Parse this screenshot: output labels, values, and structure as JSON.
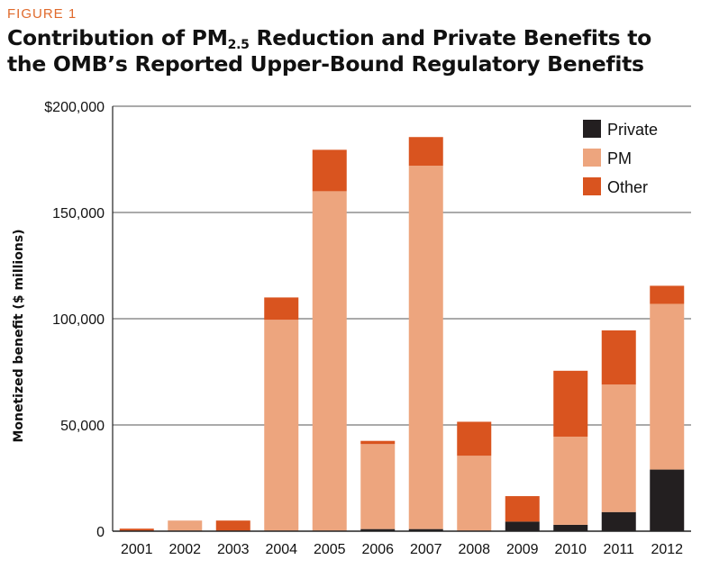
{
  "figure_label": "FIGURE 1",
  "title": {
    "part1": "Contribution of PM",
    "sub": "2.5",
    "part2": " Reduction and Private Benefits to the OMB’s Reported Upper-Bound Regulatory Benefits"
  },
  "colors": {
    "private": "#231f20",
    "pm": "#eda57e",
    "other": "#d9541f",
    "grid": "#555555",
    "label": "#e06a2c"
  },
  "chart_data": {
    "type": "bar",
    "stacked": true,
    "categories": [
      "2001",
      "2002",
      "2003",
      "2004",
      "2005",
      "2006",
      "2007",
      "2008",
      "2009",
      "2010",
      "2011",
      "2012"
    ],
    "series": [
      {
        "name": "Private",
        "key": "private",
        "values": [
          0,
          0,
          0,
          0,
          0,
          1000,
          1000,
          0,
          4500,
          3000,
          9000,
          29000
        ]
      },
      {
        "name": "PM",
        "key": "pm",
        "values": [
          0,
          5000,
          0,
          99500,
          160000,
          40000,
          171000,
          35500,
          0,
          41500,
          60000,
          78000
        ]
      },
      {
        "name": "Other",
        "key": "other",
        "values": [
          1200,
          0,
          5000,
          10500,
          19500,
          1500,
          13500,
          16000,
          12000,
          31000,
          25500,
          8500
        ]
      }
    ],
    "ylabel": "Monetized benefit ($ millions)",
    "xlabel": "",
    "ylim": [
      0,
      200000
    ],
    "yticks": [
      0,
      50000,
      100000,
      150000,
      200000
    ],
    "ytick_labels": [
      "0",
      "50,000",
      "100,000",
      "150,000",
      "$200,000"
    ],
    "legend": {
      "position": "top-right",
      "order": [
        "Private",
        "PM",
        "Other"
      ]
    },
    "grid": true
  }
}
